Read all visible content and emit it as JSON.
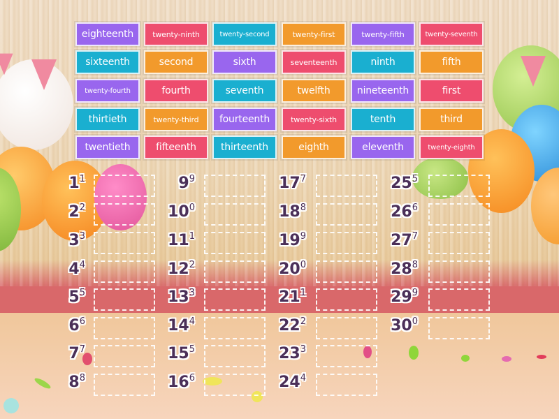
{
  "tiles": [
    {
      "label": "eighteenth",
      "color": "purple"
    },
    {
      "label": "twenty-ninth",
      "color": "pink"
    },
    {
      "label": "twenty-second",
      "color": "teal"
    },
    {
      "label": "twenty-first",
      "color": "orange"
    },
    {
      "label": "twenty-fifth",
      "color": "purple"
    },
    {
      "label": "twenty-seventh",
      "color": "pink"
    },
    {
      "label": "sixteenth",
      "color": "teal"
    },
    {
      "label": "second",
      "color": "orange"
    },
    {
      "label": "sixth",
      "color": "purple"
    },
    {
      "label": "seventeenth",
      "color": "pink"
    },
    {
      "label": "ninth",
      "color": "teal"
    },
    {
      "label": "fifth",
      "color": "orange"
    },
    {
      "label": "twenty-fourth",
      "color": "purple"
    },
    {
      "label": "fourth",
      "color": "pink"
    },
    {
      "label": "seventh",
      "color": "teal"
    },
    {
      "label": "twelfth",
      "color": "orange"
    },
    {
      "label": "nineteenth",
      "color": "purple"
    },
    {
      "label": "first",
      "color": "pink"
    },
    {
      "label": "thirtieth",
      "color": "teal"
    },
    {
      "label": "twenty-third",
      "color": "orange"
    },
    {
      "label": "fourteenth",
      "color": "purple"
    },
    {
      "label": "twenty-sixth",
      "color": "pink"
    },
    {
      "label": "tenth",
      "color": "teal"
    },
    {
      "label": "third",
      "color": "orange"
    },
    {
      "label": "twentieth",
      "color": "purple"
    },
    {
      "label": "fifteenth",
      "color": "pink"
    },
    {
      "label": "thirteenth",
      "color": "teal"
    },
    {
      "label": "eighth",
      "color": "orange"
    },
    {
      "label": "eleventh",
      "color": "purple"
    },
    {
      "label": "twenty-eighth",
      "color": "pink"
    }
  ],
  "colors": {
    "purple": "#9966ee",
    "pink": "#ee4d6e",
    "teal": "#1aafd0",
    "orange": "#f29a2c",
    "number_text": "#4b2f58"
  },
  "targets": [
    {
      "base": "1",
      "sup": "1"
    },
    {
      "base": "2",
      "sup": "2"
    },
    {
      "base": "3",
      "sup": "3"
    },
    {
      "base": "4",
      "sup": "4"
    },
    {
      "base": "5",
      "sup": "5"
    },
    {
      "base": "6",
      "sup": "6"
    },
    {
      "base": "7",
      "sup": "7"
    },
    {
      "base": "8",
      "sup": "8"
    },
    {
      "base": "9",
      "sup": "9"
    },
    {
      "base": "10",
      "sup": "0"
    },
    {
      "base": "11",
      "sup": "1"
    },
    {
      "base": "12",
      "sup": "2"
    },
    {
      "base": "13",
      "sup": "3"
    },
    {
      "base": "14",
      "sup": "4"
    },
    {
      "base": "15",
      "sup": "5"
    },
    {
      "base": "16",
      "sup": "6"
    },
    {
      "base": "17",
      "sup": "7"
    },
    {
      "base": "18",
      "sup": "8"
    },
    {
      "base": "19",
      "sup": "9"
    },
    {
      "base": "20",
      "sup": "0"
    },
    {
      "base": "21",
      "sup": "1"
    },
    {
      "base": "22",
      "sup": "2"
    },
    {
      "base": "23",
      "sup": "3"
    },
    {
      "base": "24",
      "sup": "4"
    },
    {
      "base": "25",
      "sup": "5"
    },
    {
      "base": "26",
      "sup": "6"
    },
    {
      "base": "27",
      "sup": "7"
    },
    {
      "base": "28",
      "sup": "8"
    },
    {
      "base": "29",
      "sup": "9"
    },
    {
      "base": "30",
      "sup": "0"
    }
  ]
}
